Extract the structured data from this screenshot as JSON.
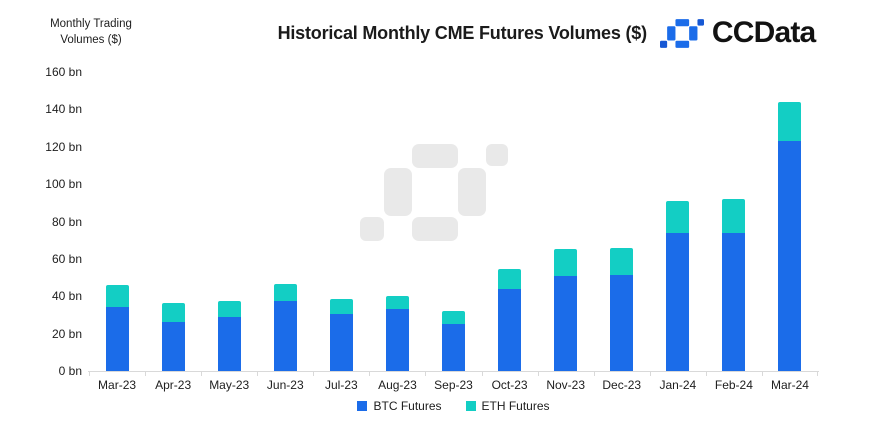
{
  "brand": {
    "name": "CCData"
  },
  "theme": {
    "brand_blue": "#1B6CE9",
    "brand_dark_blue": "#1658D4",
    "text_color": "#1D1D1D",
    "axis_line_color": "#D9D9D9",
    "watermark_color": "#E9E9E9",
    "background": "#FFFFFF"
  },
  "chart_data": {
    "type": "bar",
    "stacked": true,
    "title": "Historical Monthly CME Futures Volumes ($)",
    "y_axis_title_lines": [
      "Monthly Trading",
      "Volumes ($)"
    ],
    "categories": [
      "Mar-23",
      "Apr-23",
      "May-23",
      "Jun-23",
      "Jul-23",
      "Aug-23",
      "Sep-23",
      "Oct-23",
      "Nov-23",
      "Dec-23",
      "Jan-24",
      "Feb-24",
      "Mar-24"
    ],
    "series": [
      {
        "name": "BTC Futures",
        "color": "#1B6CE9",
        "values": [
          34.5,
          26,
          29,
          37.5,
          30.5,
          33,
          25,
          44,
          51,
          51.5,
          74,
          74,
          123
        ]
      },
      {
        "name": "ETH Futures",
        "color": "#13CEC4",
        "values": [
          11.5,
          10.5,
          8.5,
          9,
          8,
          7,
          7,
          10.5,
          14.5,
          14.5,
          17,
          18,
          21
        ]
      }
    ],
    "stack_totals": [
      46,
      36.5,
      37.5,
      46.5,
      38.5,
      40,
      32,
      54.5,
      65.5,
      66,
      91,
      92,
      144
    ],
    "unit": "bn",
    "y_tick_values": [
      0,
      20,
      40,
      60,
      80,
      100,
      120,
      140,
      160
    ],
    "y_tick_suffix": " bn",
    "ylim": [
      0,
      160
    ],
    "grid": false,
    "legend_position": "bottom"
  }
}
